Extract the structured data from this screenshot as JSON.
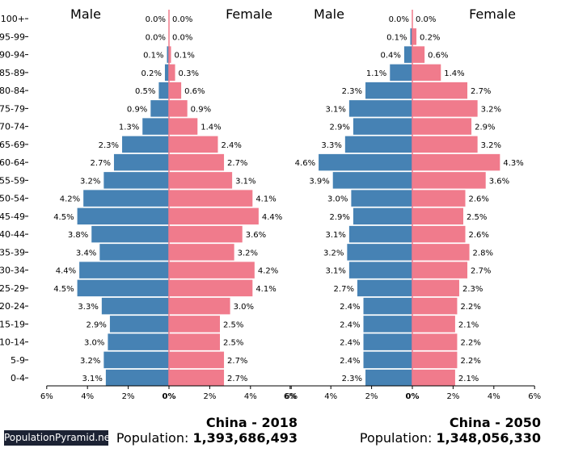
{
  "brand": "PopulationPyramid.net",
  "population_label": "Population:",
  "colors": {
    "male": "#4682b4",
    "female": "#f07b8c",
    "axis": "#000000"
  },
  "chart_data": [
    {
      "type": "bar",
      "orientation": "horizontal-pyramid",
      "title": "China - 2018",
      "population": "1,393,686,493",
      "male_label": "Male",
      "female_label": "Female",
      "categories": [
        "100+",
        "95-99",
        "90-94",
        "85-89",
        "80-84",
        "75-79",
        "70-74",
        "65-69",
        "60-64",
        "55-59",
        "50-54",
        "45-49",
        "40-44",
        "35-39",
        "30-34",
        "25-29",
        "20-24",
        "15-19",
        "10-14",
        "5-9",
        "0-4"
      ],
      "series": [
        {
          "name": "Male",
          "values": [
            0.0,
            0.0,
            0.1,
            0.2,
            0.5,
            0.9,
            1.3,
            2.3,
            2.7,
            3.2,
            4.2,
            4.5,
            3.8,
            3.4,
            4.4,
            4.5,
            3.3,
            2.9,
            3.0,
            3.2,
            3.1
          ],
          "labels": [
            "0.0%",
            "0.0%",
            "0.1%",
            "0.2%",
            "0.5%",
            "0.9%",
            "1.3%",
            "2.3%",
            "2.7%",
            "3.2%",
            "4.2%",
            "4.5%",
            "3.8%",
            "3.4%",
            "4.4%",
            "4.5%",
            "3.3%",
            "2.9%",
            "3.0%",
            "3.2%",
            "3.1%"
          ]
        },
        {
          "name": "Female",
          "values": [
            0.0,
            0.0,
            0.1,
            0.3,
            0.6,
            0.9,
            1.4,
            2.4,
            2.7,
            3.1,
            4.1,
            4.4,
            3.6,
            3.2,
            4.2,
            4.1,
            3.0,
            2.5,
            2.5,
            2.7,
            2.7
          ],
          "labels": [
            "0.0%",
            "0.0%",
            "0.1%",
            "0.3%",
            "0.6%",
            "0.9%",
            "1.4%",
            "2.4%",
            "2.7%",
            "3.1%",
            "4.1%",
            "4.4%",
            "3.6%",
            "3.2%",
            "4.2%",
            "4.1%",
            "3.0%",
            "2.5%",
            "2.5%",
            "2.7%",
            "2.7%"
          ]
        }
      ],
      "xlim": [
        -6,
        6
      ],
      "xticks": [
        "6%",
        "4%",
        "2%",
        "0%",
        "2%",
        "4%",
        "6%"
      ]
    },
    {
      "type": "bar",
      "orientation": "horizontal-pyramid",
      "title": "China - 2050",
      "population": "1,348,056,330",
      "male_label": "Male",
      "female_label": "Female",
      "categories": [
        "100+",
        "95-99",
        "90-94",
        "85-89",
        "80-84",
        "75-79",
        "70-74",
        "65-69",
        "60-64",
        "55-59",
        "50-54",
        "45-49",
        "40-44",
        "35-39",
        "30-34",
        "25-29",
        "20-24",
        "15-19",
        "10-14",
        "5-9",
        "0-4"
      ],
      "series": [
        {
          "name": "Male",
          "values": [
            0.0,
            0.1,
            0.4,
            1.1,
            2.3,
            3.1,
            2.9,
            3.3,
            4.6,
            3.9,
            3.0,
            2.9,
            3.1,
            3.2,
            3.1,
            2.7,
            2.4,
            2.4,
            2.4,
            2.4,
            2.3
          ],
          "labels": [
            "0.0%",
            "0.1%",
            "0.4%",
            "1.1%",
            "2.3%",
            "3.1%",
            "2.9%",
            "3.3%",
            "4.6%",
            "3.9%",
            "3.0%",
            "2.9%",
            "3.1%",
            "3.2%",
            "3.1%",
            "2.7%",
            "2.4%",
            "2.4%",
            "2.4%",
            "2.4%",
            "2.3%"
          ]
        },
        {
          "name": "Female",
          "values": [
            0.0,
            0.2,
            0.6,
            1.4,
            2.7,
            3.2,
            2.9,
            3.2,
            4.3,
            3.6,
            2.6,
            2.5,
            2.6,
            2.8,
            2.7,
            2.3,
            2.2,
            2.1,
            2.2,
            2.2,
            2.1
          ],
          "labels": [
            "0.0%",
            "0.2%",
            "0.6%",
            "1.4%",
            "2.7%",
            "3.2%",
            "2.9%",
            "3.2%",
            "4.3%",
            "3.6%",
            "2.6%",
            "2.5%",
            "2.6%",
            "2.8%",
            "2.7%",
            "2.3%",
            "2.2%",
            "2.1%",
            "2.2%",
            "2.2%",
            "2.1%"
          ]
        }
      ],
      "xlim": [
        -6,
        6
      ],
      "xticks": [
        "6%",
        "4%",
        "2%",
        "0%",
        "2%",
        "4%",
        "6%"
      ]
    }
  ]
}
